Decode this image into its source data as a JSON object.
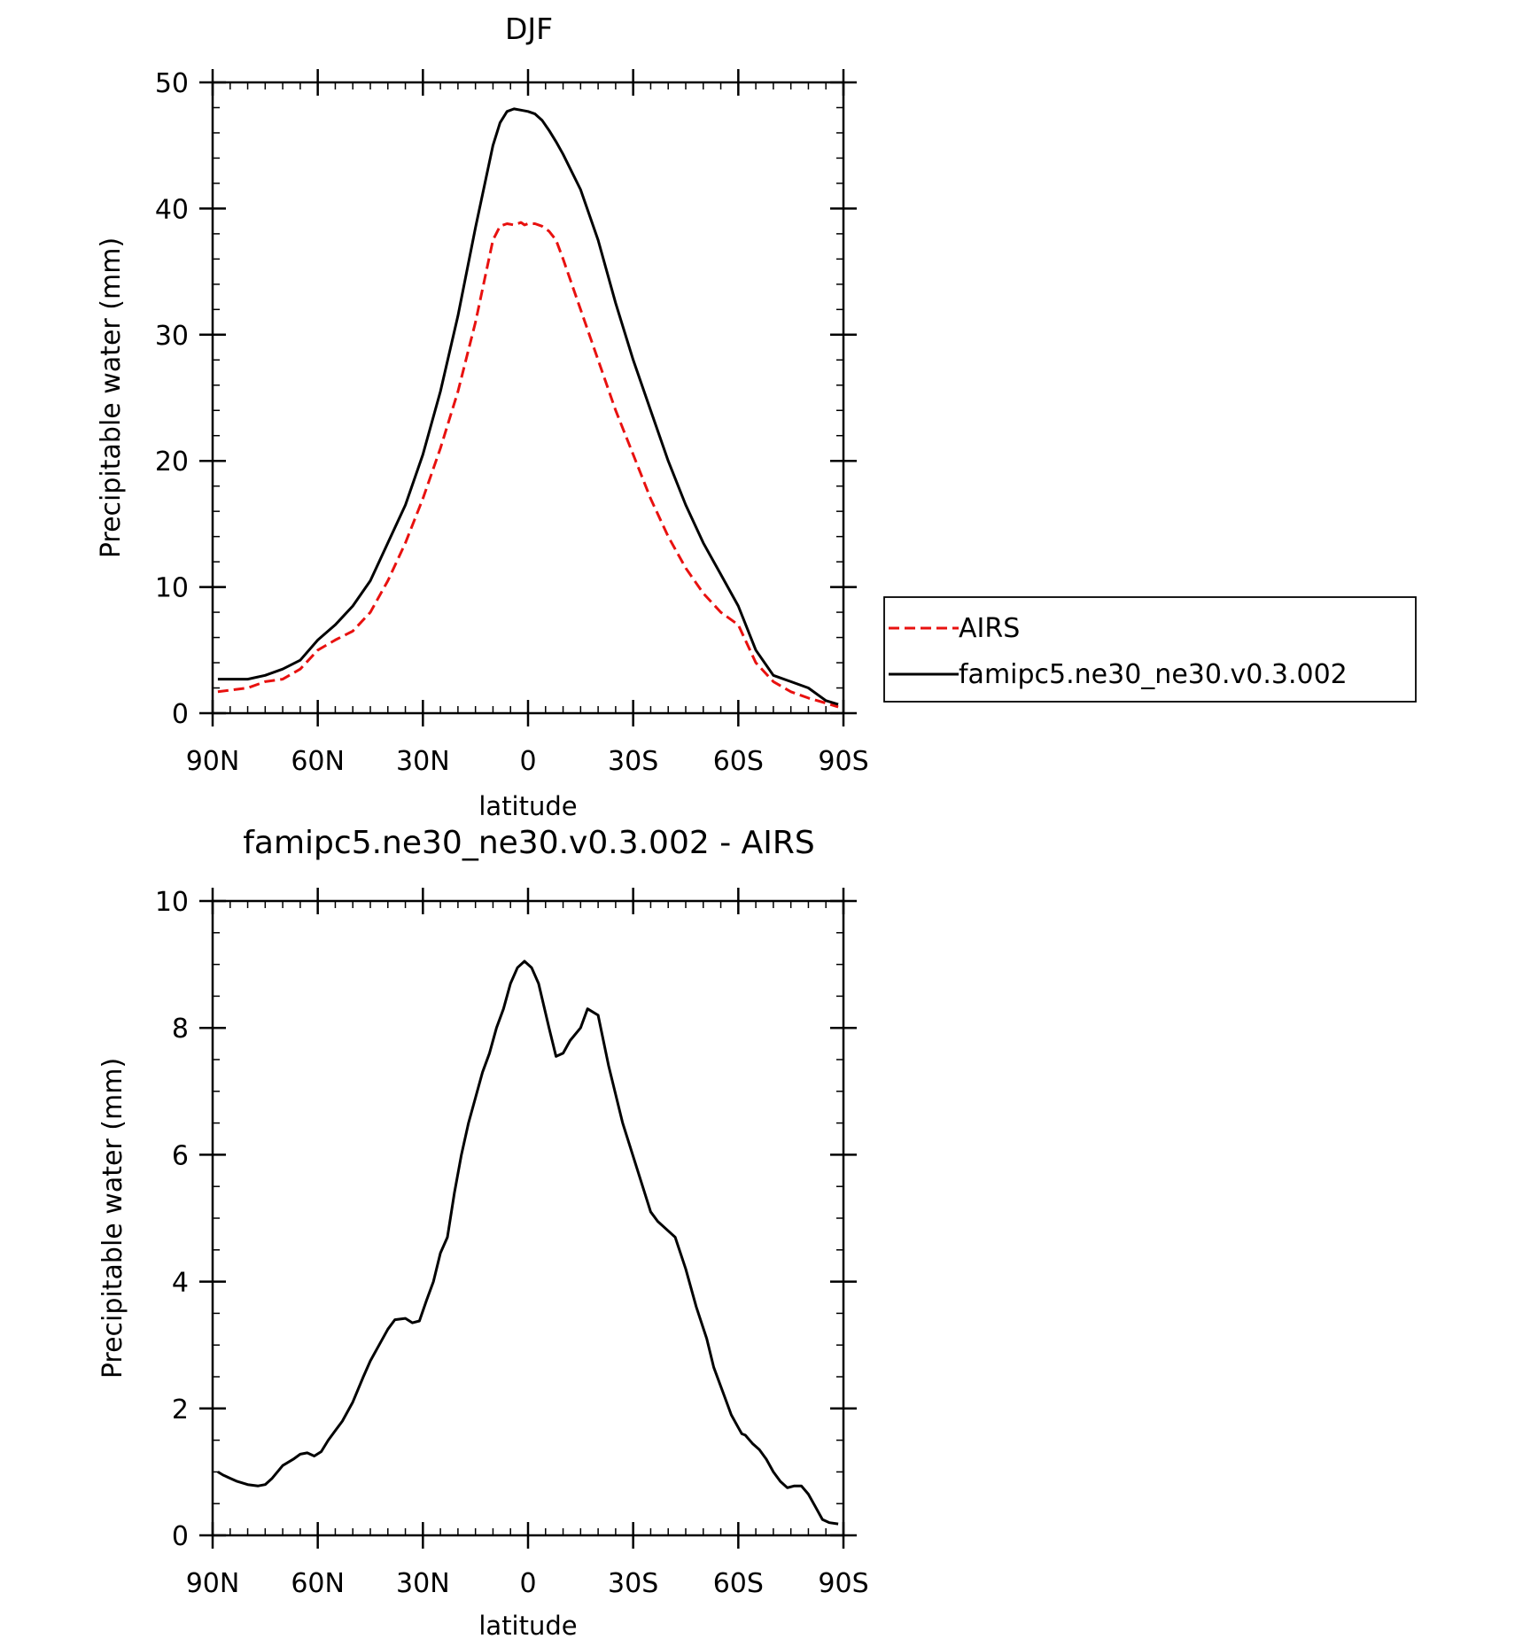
{
  "chart_data": [
    {
      "type": "line",
      "title": "DJF",
      "xlabel": "latitude",
      "ylabel": "Precipitable water (mm)",
      "xlim": [
        90,
        -90
      ],
      "ylim": [
        0,
        50
      ],
      "x_ticks": [
        {
          "value": 90,
          "label": "90N"
        },
        {
          "value": 60,
          "label": "60N"
        },
        {
          "value": 30,
          "label": "30N"
        },
        {
          "value": 0,
          "label": "0"
        },
        {
          "value": -30,
          "label": "30S"
        },
        {
          "value": -60,
          "label": "60S"
        },
        {
          "value": -90,
          "label": "90S"
        }
      ],
      "y_ticks": [
        {
          "value": 0,
          "label": "0"
        },
        {
          "value": 10,
          "label": "10"
        },
        {
          "value": 20,
          "label": "20"
        },
        {
          "value": 30,
          "label": "30"
        },
        {
          "value": 40,
          "label": "40"
        },
        {
          "value": 50,
          "label": "50"
        }
      ],
      "legend": "right",
      "series": [
        {
          "name": "AIRS",
          "color": "#e8110f",
          "dash": "dashed",
          "x": [
            88.5,
            80,
            75,
            70,
            65,
            60,
            55,
            50,
            45,
            40,
            35,
            30,
            25,
            20,
            15,
            10,
            8,
            6,
            4,
            2,
            1,
            0,
            -2,
            -4,
            -6,
            -8,
            -10,
            -15,
            -20,
            -25,
            -30,
            -35,
            -40,
            -45,
            -50,
            -55,
            -60,
            -65,
            -70,
            -75,
            -80,
            -85,
            -88.5
          ],
          "y": [
            1.7,
            2.0,
            2.5,
            2.7,
            3.5,
            5.0,
            5.8,
            6.5,
            8.0,
            10.5,
            13.5,
            17.0,
            21.0,
            25.5,
            31.0,
            37.5,
            38.6,
            38.8,
            38.7,
            38.9,
            38.7,
            38.8,
            38.8,
            38.6,
            38.2,
            37.5,
            36.0,
            32.0,
            28.0,
            24.0,
            20.5,
            17.0,
            14.0,
            11.5,
            9.5,
            8.0,
            7.0,
            4.0,
            2.5,
            1.7,
            1.2,
            0.8,
            0.5
          ]
        },
        {
          "name": "famipc5.ne30_ne30.v0.3.002",
          "color": "#000000",
          "dash": "solid",
          "x": [
            88.5,
            80,
            75,
            70,
            65,
            60,
            55,
            50,
            45,
            40,
            35,
            30,
            25,
            20,
            15,
            10,
            8,
            6,
            4,
            2,
            0,
            -2,
            -4,
            -6,
            -8,
            -10,
            -15,
            -20,
            -25,
            -30,
            -35,
            -40,
            -45,
            -50,
            -55,
            -60,
            -65,
            -70,
            -75,
            -80,
            -85,
            -88.5
          ],
          "y": [
            2.7,
            2.7,
            3.0,
            3.5,
            4.2,
            5.8,
            7.0,
            8.5,
            10.5,
            13.5,
            16.5,
            20.5,
            25.5,
            31.5,
            38.5,
            45.0,
            46.8,
            47.7,
            47.9,
            47.8,
            47.7,
            47.5,
            47.0,
            46.2,
            45.3,
            44.3,
            41.5,
            37.5,
            32.5,
            28.0,
            24.0,
            20.0,
            16.5,
            13.5,
            11.0,
            8.5,
            5.0,
            3.0,
            2.5,
            2.0,
            1.0,
            0.7
          ]
        }
      ]
    },
    {
      "type": "line",
      "title": "famipc5.ne30_ne30.v0.3.002 - AIRS",
      "xlabel": "latitude",
      "ylabel": "Precipitable water (mm)",
      "xlim": [
        90,
        -90
      ],
      "ylim": [
        0,
        10
      ],
      "x_ticks": [
        {
          "value": 90,
          "label": "90N"
        },
        {
          "value": 60,
          "label": "60N"
        },
        {
          "value": 30,
          "label": "30N"
        },
        {
          "value": 0,
          "label": "0"
        },
        {
          "value": -30,
          "label": "30S"
        },
        {
          "value": -60,
          "label": "60S"
        },
        {
          "value": -90,
          "label": "90S"
        }
      ],
      "y_ticks": [
        {
          "value": 0,
          "label": "0"
        },
        {
          "value": 2,
          "label": "2"
        },
        {
          "value": 4,
          "label": "4"
        },
        {
          "value": 6,
          "label": "6"
        },
        {
          "value": 8,
          "label": "8"
        },
        {
          "value": 10,
          "label": "10"
        }
      ],
      "series": [
        {
          "color": "#000000",
          "dash": "solid",
          "x": [
            88.5,
            87,
            85,
            83,
            80,
            77,
            75,
            73,
            70,
            67,
            65,
            63,
            61,
            59,
            57,
            55,
            53,
            50,
            47,
            45,
            43,
            40,
            38,
            35,
            33,
            31,
            29,
            27,
            25,
            23,
            21,
            19,
            17,
            15,
            13,
            11,
            9,
            7,
            5,
            3,
            1,
            0,
            -1,
            -3,
            -6,
            -8,
            -10,
            -12,
            -15,
            -17,
            -20,
            -23,
            -27,
            -31,
            -35,
            -37,
            -40,
            -42,
            -45,
            -48,
            -51,
            -53,
            -56,
            -58,
            -60,
            -61,
            -62,
            -64,
            -66,
            -68,
            -70,
            -72,
            -74,
            -76,
            -78,
            -80,
            -82,
            -84,
            -86,
            -88.5
          ],
          "y": [
            1.0,
            0.95,
            0.9,
            0.85,
            0.8,
            0.78,
            0.8,
            0.9,
            1.1,
            1.2,
            1.28,
            1.3,
            1.25,
            1.32,
            1.5,
            1.65,
            1.8,
            2.1,
            2.5,
            2.75,
            2.95,
            3.25,
            3.4,
            3.42,
            3.35,
            3.38,
            3.7,
            4.0,
            4.45,
            4.7,
            5.4,
            6.0,
            6.5,
            6.9,
            7.3,
            7.6,
            8.0,
            8.3,
            8.7,
            8.95,
            9.05,
            9.0,
            8.95,
            8.7,
            8.0,
            7.55,
            7.6,
            7.8,
            8.0,
            8.3,
            8.2,
            7.4,
            6.5,
            5.8,
            5.1,
            4.95,
            4.8,
            4.7,
            4.2,
            3.6,
            3.1,
            2.65,
            2.2,
            1.9,
            1.7,
            1.6,
            1.58,
            1.45,
            1.35,
            1.2,
            1.0,
            0.85,
            0.75,
            0.78,
            0.78,
            0.65,
            0.45,
            0.25,
            0.2,
            0.18
          ]
        }
      ]
    }
  ]
}
